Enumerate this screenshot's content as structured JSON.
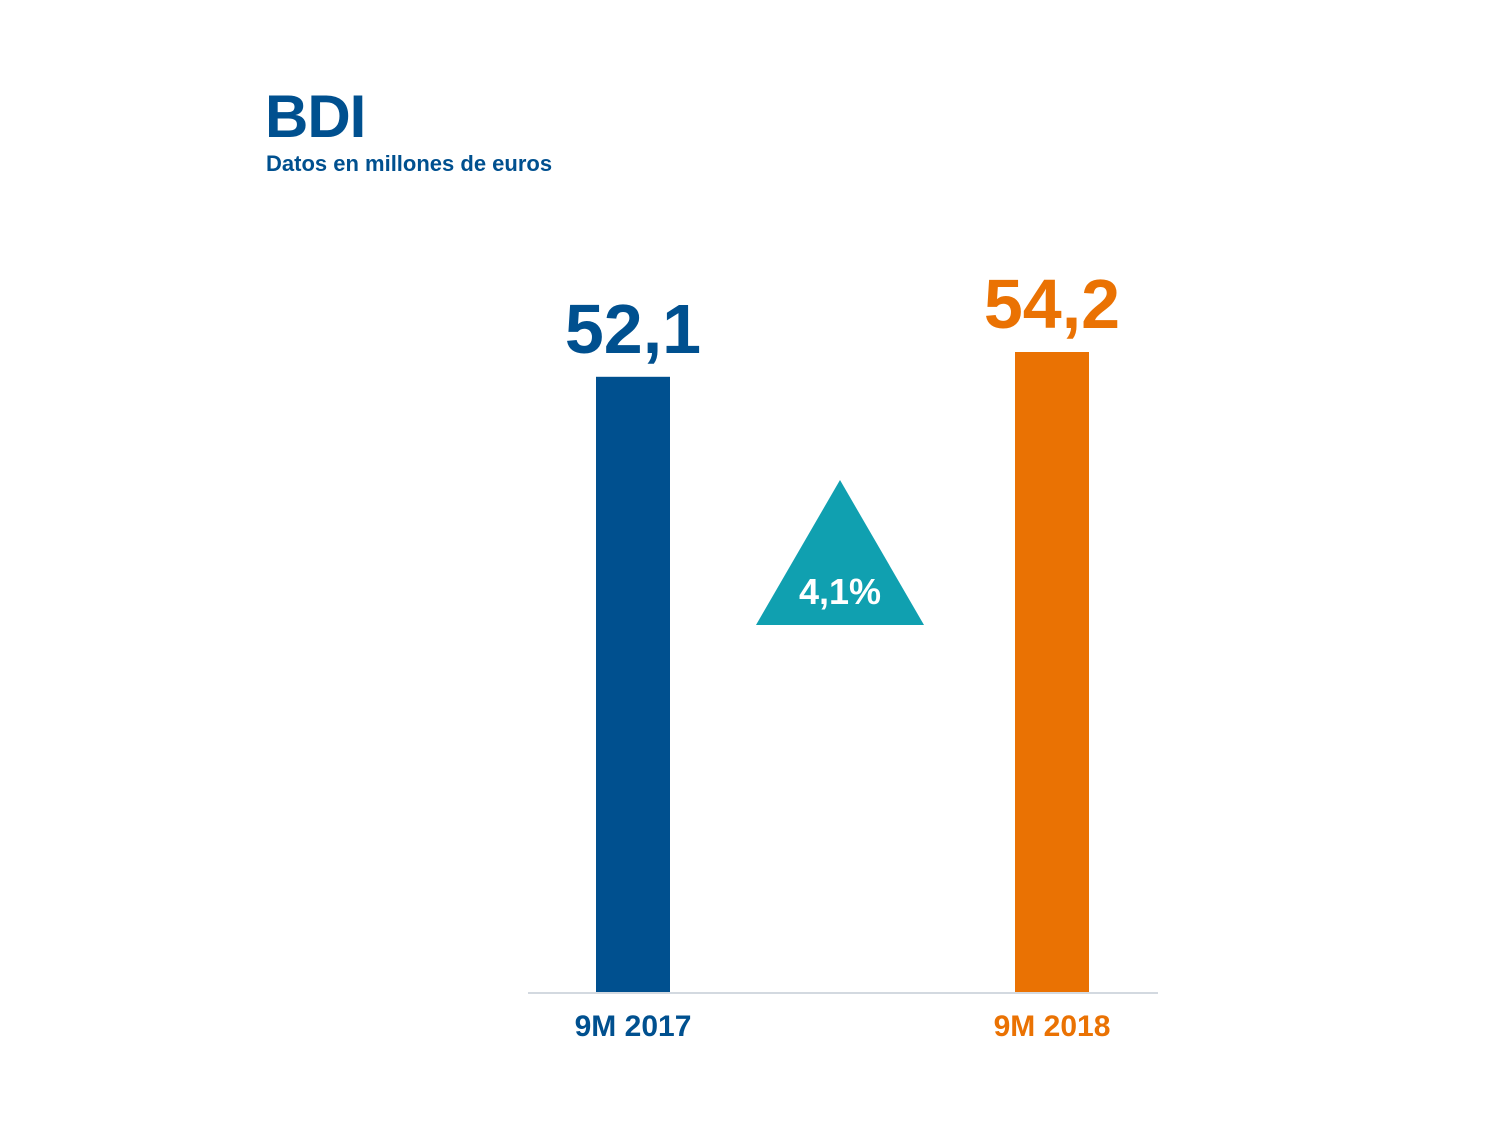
{
  "chart_data": {
    "type": "bar",
    "title": "BDI",
    "subtitle": "Datos en millones de euros",
    "categories": [
      "9M 2017",
      "9M 2018"
    ],
    "values": [
      52.1,
      54.2
    ],
    "value_labels": [
      "52,1",
      "54,2"
    ],
    "colors": [
      "#00508f",
      "#ea7203"
    ],
    "ylim": [
      0,
      54.2
    ],
    "grid": false,
    "change": {
      "label": "4,1%",
      "direction": "up",
      "color": "#10a0b0"
    }
  }
}
